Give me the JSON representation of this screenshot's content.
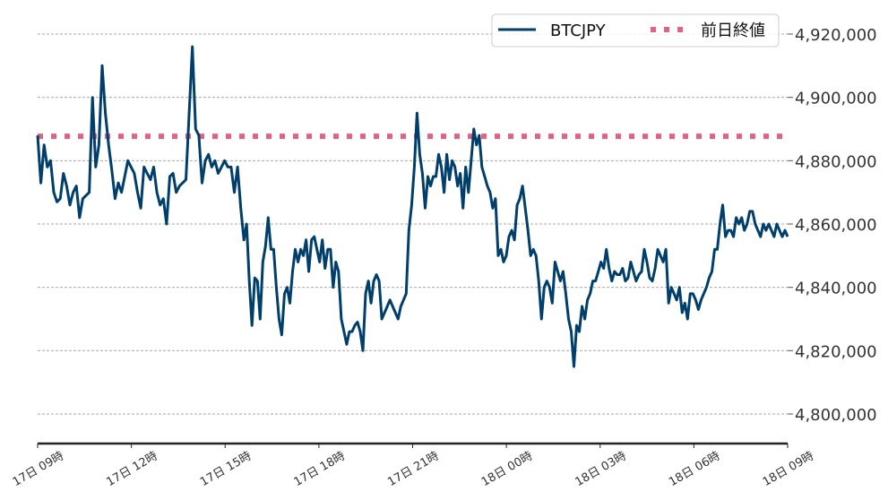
{
  "chart_data": {
    "type": "line",
    "title": "",
    "xlabel": "",
    "ylabel": "",
    "xlim": [
      "17日 09:00",
      "18日 09:00"
    ],
    "ylim": [
      4790000,
      4926000
    ],
    "grid": {
      "y": true,
      "x": false,
      "style": "dashed"
    },
    "legend_placement": "top-right",
    "x_ticks": [
      "17日 09時",
      "17日 12時",
      "17日 15時",
      "17日 18時",
      "17日 21時",
      "18日 00時",
      "18日 03時",
      "18日 06時",
      "18日 09時"
    ],
    "y_ticks": [
      4800000,
      4820000,
      4840000,
      4860000,
      4880000,
      4900000,
      4920000
    ],
    "y_tick_labels": [
      "4,800,000",
      "4,820,000",
      "4,840,000",
      "4,860,000",
      "4,880,000",
      "4,900,000",
      "4,920,000"
    ],
    "series": [
      {
        "name": "BTCJPY",
        "color": "#003f6b",
        "style": "solid",
        "segments": [
          {
            "start": "17日 09:00",
            "end": "17日 15:30",
            "values": [
              4888000,
              4873000,
              4885000,
              4878000,
              4880000,
              4870000,
              4867000,
              4868000,
              4876000,
              4872000,
              4866000,
              4870000,
              4872000,
              4862000,
              4868000,
              4869000,
              4870000,
              4900000,
              4878000,
              4885000,
              4910000,
              4895000,
              4885000,
              4877000,
              4868000,
              4873000,
              4870000,
              4875000,
              4880000,
              4878000,
              4876000,
              4870000,
              4865000,
              4878000,
              4876000,
              4874000,
              4878000,
              4870000,
              4866000,
              4868000,
              4860000,
              4875000,
              4876000,
              4870000,
              4872000,
              4873000,
              4874000,
              4895000,
              4916000,
              4890000,
              4888000,
              4873000,
              4880000,
              4882000,
              4878000,
              4880000,
              4876000,
              4878000,
              4880000,
              4878000,
              4878000,
              4870000,
              4878000,
              4865000
            ]
          },
          {
            "start": "17日 15:36",
            "end": "18日 09:00",
            "values": [
              4855000,
              4860000,
              4842000,
              4828000,
              4843000,
              4842000,
              4830000,
              4848000,
              4853000,
              4862000,
              4852000,
              4852000,
              4840000,
              4830000,
              4825000,
              4838000,
              4840000,
              4835000,
              4845000,
              4852000,
              4848000,
              4852000,
              4850000,
              4855000,
              4845000,
              4855000,
              4856000,
              4852000,
              4848000,
              4855000,
              4846000,
              4852000,
              4852000,
              4840000,
              4848000,
              4845000,
              4830000,
              4826000,
              4822000,
              4826000,
              4826000,
              4828000,
              4829000,
              4826000,
              4820000,
              4838000,
              4842000,
              4835000,
              4842000,
              4844000,
              4842000,
              4830000,
              4832000,
              4834000,
              4836000,
              4834000,
              4832000,
              4830000,
              4834000,
              4836000,
              4838000,
              4858000,
              4866000,
              4878000,
              4895000,
              4882000,
              4876000,
              4865000,
              4875000,
              4872000,
              4875000,
              4875000,
              4882000,
              4878000,
              4870000,
              4882000,
              4874000,
              4880000,
              4878000,
              4872000,
              4876000,
              4865000,
              4878000,
              4870000,
              4880000,
              4890000,
              4885000,
              4888000,
              4878000,
              4875000,
              4872000,
              4870000,
              4865000,
              4868000,
              4850000,
              4852000,
              4848000,
              4850000,
              4856000,
              4858000,
              4855000,
              4866000,
              4868000,
              4872000,
              4865000,
              4858000,
              4850000,
              4852000,
              4850000,
              4842000,
              4830000,
              4840000,
              4842000,
              4840000,
              4835000,
              4848000,
              4845000,
              4842000,
              4845000,
              4838000,
              4830000,
              4826000,
              4815000,
              4828000,
              4826000,
              4834000,
              4830000,
              4836000,
              4838000,
              4842000,
              4842000,
              4845000,
              4848000,
              4846000,
              4852000,
              4846000,
              4842000,
              4845000,
              4844000,
              4844000,
              4846000,
              4842000,
              4843000,
              4848000,
              4845000,
              4842000,
              4844000,
              4845000,
              4852000,
              4848000,
              4843000,
              4842000,
              4846000,
              4852000,
              4850000,
              4848000,
              4852000,
              4835000,
              4840000,
              4838000,
              4836000,
              4840000,
              4832000,
              4835000,
              4830000,
              4838000,
              4838000,
              4836000,
              4833000,
              4836000,
              4838000,
              4840000,
              4843000,
              4845000,
              4852000,
              4852000,
              4860000,
              4866000,
              4856000,
              4858000,
              4858000,
              4856000,
              4862000,
              4860000,
              4862000,
              4858000,
              4860000,
              4864000,
              4864000,
              4860000,
              4858000,
              4856000,
              4860000,
              4858000,
              4860000,
              4858000,
              4856000,
              4860000,
              4858000,
              4856000,
              4858000,
              4856000
            ]
          }
        ]
      },
      {
        "name": "前日終値",
        "color": "#e06383",
        "style": "dotted",
        "value": 4887700
      }
    ]
  }
}
